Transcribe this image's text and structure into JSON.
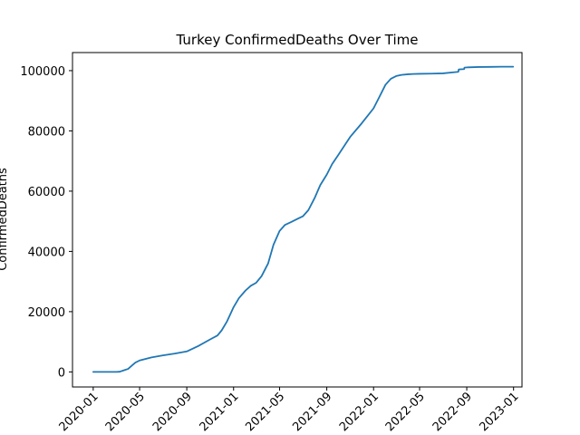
{
  "chart_data": {
    "type": "line",
    "title": "Turkey  ConfirmedDeaths Over Time",
    "xlabel": "",
    "ylabel": "ConfirmedDeaths",
    "x_scale": "date",
    "xlim": [
      "2019-11-08",
      "2023-01-23"
    ],
    "ylim": [
      -5000,
      106000
    ],
    "x_ticks": [
      "2020-01",
      "2020-05",
      "2020-09",
      "2021-01",
      "2021-05",
      "2021-09",
      "2022-01",
      "2022-05",
      "2022-09",
      "2023-01"
    ],
    "y_ticks": [
      0,
      20000,
      40000,
      60000,
      80000,
      100000
    ],
    "y_tick_labels": [
      "0",
      "20000",
      "40000",
      "60000",
      "80000",
      "100000"
    ],
    "grid": false,
    "legend": "none",
    "colors": {
      "line": "#1f77b4",
      "axes": "#000000",
      "background": "#ffffff"
    },
    "series": [
      {
        "x": [
          "2020-01-01",
          "2020-02-01",
          "2020-03-01",
          "2020-03-10",
          "2020-03-20",
          "2020-04-01",
          "2020-04-10",
          "2020-04-20",
          "2020-05-01",
          "2020-06-01",
          "2020-07-01",
          "2020-08-01",
          "2020-09-01",
          "2020-10-01",
          "2020-11-01",
          "2020-11-20",
          "2020-12-01",
          "2020-12-15",
          "2021-01-01",
          "2021-01-15",
          "2021-02-01",
          "2021-02-15",
          "2021-03-01",
          "2021-03-15",
          "2021-04-01",
          "2021-04-15",
          "2021-05-01",
          "2021-05-15",
          "2021-06-01",
          "2021-06-15",
          "2021-07-01",
          "2021-07-15",
          "2021-08-01",
          "2021-08-15",
          "2021-09-01",
          "2021-09-15",
          "2021-10-01",
          "2021-11-01",
          "2021-12-01",
          "2022-01-01",
          "2022-01-15",
          "2022-02-01",
          "2022-02-15",
          "2022-03-01",
          "2022-03-15",
          "2022-04-01",
          "2022-04-15",
          "2022-05-01",
          "2022-06-01",
          "2022-07-01",
          "2022-08-01",
          "2022-08-10",
          "2022-08-11",
          "2022-08-25",
          "2022-08-26",
          "2022-09-05",
          "2022-10-01",
          "2022-11-01",
          "2022-12-01",
          "2022-12-31"
        ],
        "y": [
          0,
          0,
          0,
          50,
          500,
          1000,
          2000,
          3100,
          3800,
          4800,
          5500,
          6100,
          6800,
          8600,
          10800,
          12100,
          13800,
          16800,
          21500,
          24500,
          27000,
          28600,
          29600,
          31800,
          36000,
          42200,
          46800,
          48800,
          49800,
          50700,
          51700,
          53700,
          57900,
          62000,
          65500,
          69000,
          72000,
          78000,
          82500,
          87500,
          91000,
          95300,
          97300,
          98200,
          98600,
          98800,
          98900,
          98950,
          99000,
          99100,
          99500,
          99600,
          100400,
          100500,
          101000,
          101100,
          101200,
          101250,
          101300,
          101300
        ]
      }
    ]
  }
}
